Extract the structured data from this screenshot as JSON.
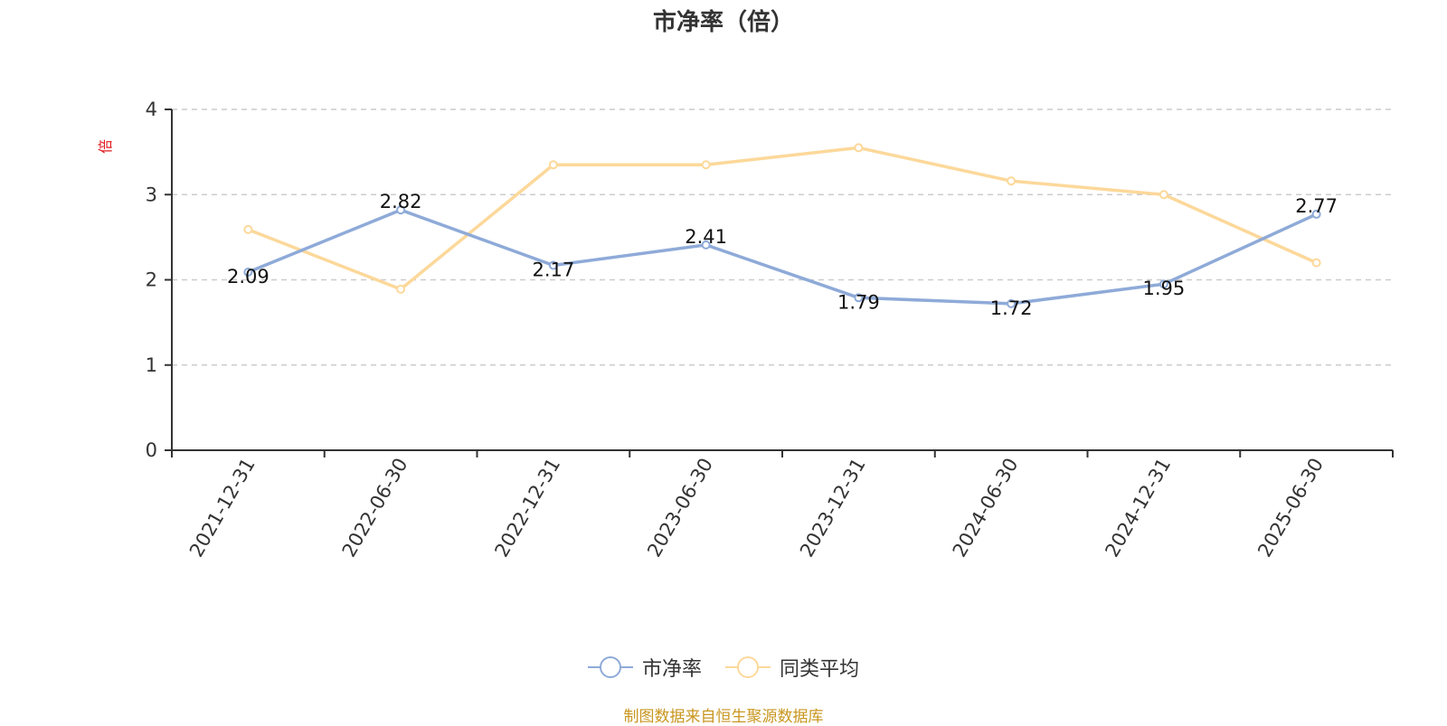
{
  "chart_data": {
    "type": "line",
    "title": "市净率（倍）",
    "ylabel": "倍",
    "ylim": [
      0,
      4
    ],
    "yticks": [
      "0",
      "1",
      "2",
      "3",
      "4"
    ],
    "grid": true,
    "categories": [
      "2021-12-31",
      "2022-06-30",
      "2022-12-31",
      "2023-06-30",
      "2023-12-31",
      "2024-06-30",
      "2024-12-31",
      "2025-06-30"
    ],
    "series": [
      {
        "name": "市净率",
        "color": "#8eaad8",
        "values": [
          2.09,
          2.82,
          2.17,
          2.41,
          1.79,
          1.72,
          1.95,
          2.77
        ],
        "labels": [
          "2.09",
          "2.82",
          "2.17",
          "2.41",
          "1.79",
          "1.72",
          "1.95",
          "2.77"
        ]
      },
      {
        "name": "同类平均",
        "color": "#fcd89a",
        "values": [
          2.59,
          1.89,
          3.35,
          3.35,
          3.55,
          3.16,
          3.0,
          2.2
        ]
      }
    ],
    "legend_position": "bottom-center"
  },
  "colors": {
    "unit_label": "#e0191d",
    "source_note": "#c9961f",
    "axis": "#333333",
    "grid": "#cccccc"
  },
  "footer": {
    "source_note": "制图数据来自恒生聚源数据库"
  }
}
